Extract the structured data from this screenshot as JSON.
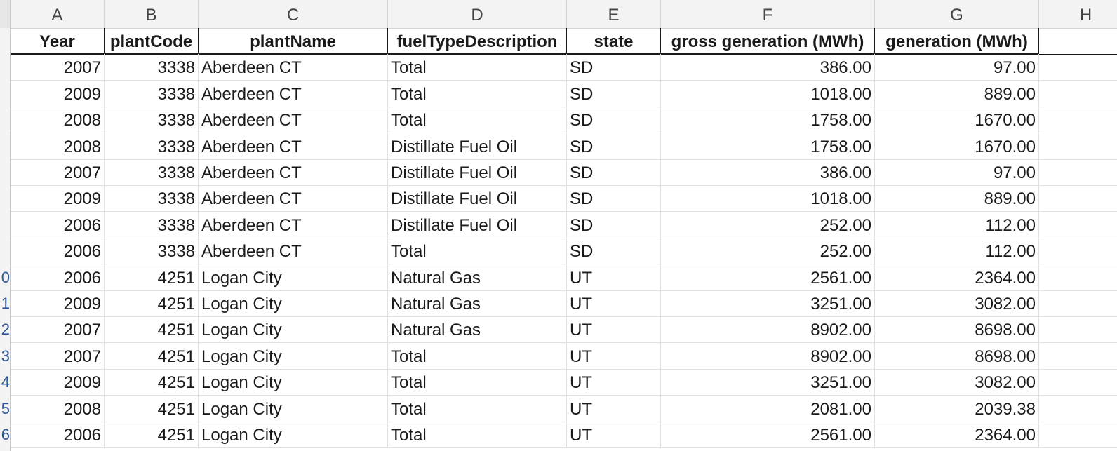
{
  "columns": [
    "A",
    "B",
    "C",
    "D",
    "E",
    "F",
    "G",
    "H"
  ],
  "headers": [
    "Year",
    "plantCode",
    "plantName",
    "fuelTypeDescription",
    "state",
    "gross generation (MWh)",
    "generation (MWh)"
  ],
  "rows": [
    [
      "2007",
      "3338",
      "Aberdeen CT",
      "Total",
      "SD",
      "386.00",
      "97.00"
    ],
    [
      "2009",
      "3338",
      "Aberdeen CT",
      "Total",
      "SD",
      "1018.00",
      "889.00"
    ],
    [
      "2008",
      "3338",
      "Aberdeen CT",
      "Total",
      "SD",
      "1758.00",
      "1670.00"
    ],
    [
      "2008",
      "3338",
      "Aberdeen CT",
      "Distillate Fuel Oil",
      "SD",
      "1758.00",
      "1670.00"
    ],
    [
      "2007",
      "3338",
      "Aberdeen CT",
      "Distillate Fuel Oil",
      "SD",
      "386.00",
      "97.00"
    ],
    [
      "2009",
      "3338",
      "Aberdeen CT",
      "Distillate Fuel Oil",
      "SD",
      "1018.00",
      "889.00"
    ],
    [
      "2006",
      "3338",
      "Aberdeen CT",
      "Distillate Fuel Oil",
      "SD",
      "252.00",
      "112.00"
    ],
    [
      "2006",
      "3338",
      "Aberdeen CT",
      "Total",
      "SD",
      "252.00",
      "112.00"
    ],
    [
      "2006",
      "4251",
      "Logan City",
      "Natural Gas",
      "UT",
      "2561.00",
      "2364.00"
    ],
    [
      "2009",
      "4251",
      "Logan City",
      "Natural Gas",
      "UT",
      "3251.00",
      "3082.00"
    ],
    [
      "2007",
      "4251",
      "Logan City",
      "Natural Gas",
      "UT",
      "8902.00",
      "8698.00"
    ],
    [
      "2007",
      "4251",
      "Logan City",
      "Total",
      "UT",
      "8902.00",
      "8698.00"
    ],
    [
      "2009",
      "4251",
      "Logan City",
      "Total",
      "UT",
      "3251.00",
      "3082.00"
    ],
    [
      "2008",
      "4251",
      "Logan City",
      "Total",
      "UT",
      "2081.00",
      "2039.38"
    ],
    [
      "2006",
      "4251",
      "Logan City",
      "Total",
      "UT",
      "2561.00",
      "2364.00"
    ]
  ],
  "row_numbers": [
    "",
    "",
    "",
    "",
    "",
    "",
    "",
    "",
    "0",
    "1",
    "2",
    "3",
    "4",
    "5",
    "6"
  ]
}
